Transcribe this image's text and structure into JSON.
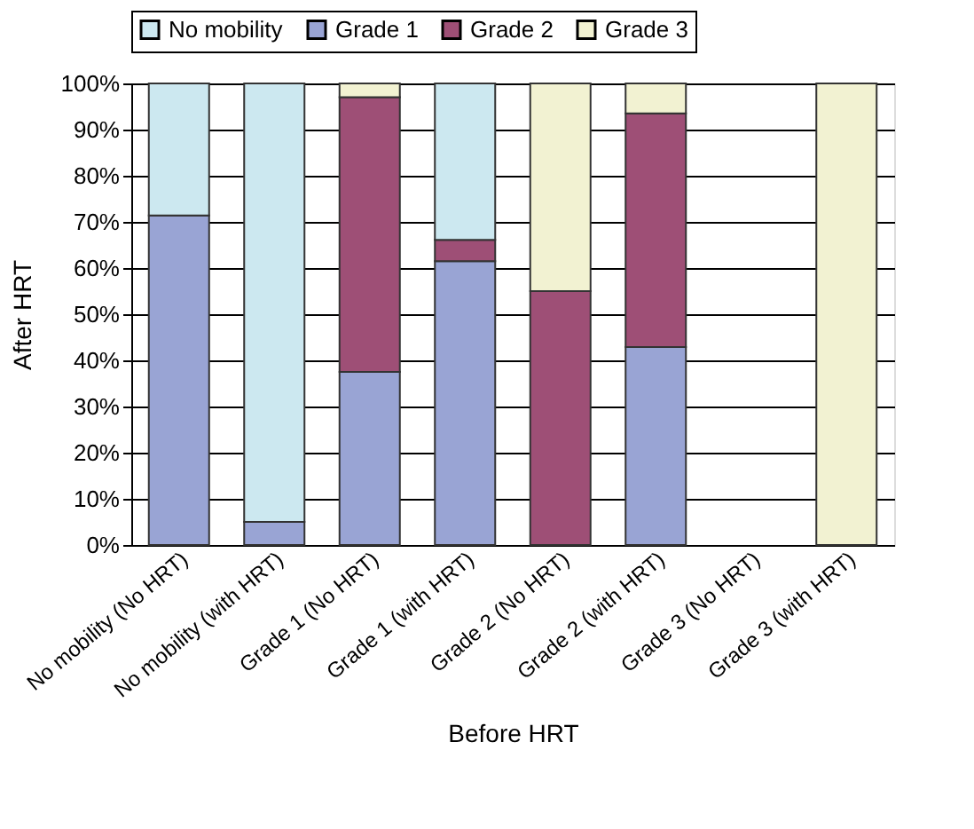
{
  "chart_data": {
    "type": "bar",
    "stacked": true,
    "xlabel": "Before HRT",
    "ylabel": "After HRT",
    "categories": [
      "No mobility (No HRT)",
      "No mobility (with HRT)",
      "Grade 1 (No HRT)",
      "Grade 1 (with HRT)",
      "Grade 2 (No HRT)",
      "Grade 2 (with HRT)",
      "Grade 3 (No HRT)",
      "Grade 3 (with HRT)"
    ],
    "series": [
      {
        "name": "Grade 1",
        "color": "#99a4d4",
        "values": [
          71.4,
          5,
          37.5,
          61.5,
          null,
          42.9,
          null,
          null
        ]
      },
      {
        "name": "Grade 2",
        "color": "#9e4f76",
        "values": [
          null,
          null,
          59.5,
          4.6,
          55,
          50.6,
          null,
          null
        ]
      },
      {
        "name": "Grade 3",
        "color": "#f2f2d2",
        "values": [
          null,
          null,
          3,
          null,
          45,
          6.5,
          null,
          100
        ]
      },
      {
        "name": "No mobility",
        "color": "#cce8f0",
        "values": [
          28.6,
          95,
          null,
          33.9,
          null,
          null,
          null,
          null
        ]
      }
    ],
    "ylim": [
      0,
      100
    ],
    "yticks": [
      {
        "value": 0,
        "label": "0%"
      },
      {
        "value": 10,
        "label": "10%"
      },
      {
        "value": 20,
        "label": "20%"
      },
      {
        "value": 30,
        "label": "30%"
      },
      {
        "value": 40,
        "label": "40%"
      },
      {
        "value": 50,
        "label": "50%"
      },
      {
        "value": 60,
        "label": "60%"
      },
      {
        "value": 70,
        "label": "70%"
      },
      {
        "value": 80,
        "label": "80%"
      },
      {
        "value": 90,
        "label": "90%"
      },
      {
        "value": 100,
        "label": "100%"
      }
    ],
    "grid": "y",
    "legend": "top"
  }
}
